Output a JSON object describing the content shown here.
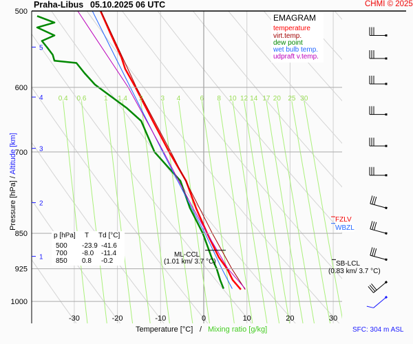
{
  "header": {
    "station": "Praha-Libus",
    "datetime": "05.10.2025 06 UTC",
    "copyright": "CHMI © 2025"
  },
  "legend": {
    "title": "EMAGRAM",
    "items": [
      {
        "label": "temperature",
        "color": "#ff0000"
      },
      {
        "label": "virt.temp.",
        "color": "#a00000"
      },
      {
        "label": "dew point",
        "color": "#008800"
      },
      {
        "label": "wet bulb temp.",
        "color": "#2266ff"
      },
      {
        "label": "udpraft v.temp.",
        "color": "#bb00bb"
      }
    ]
  },
  "table": {
    "headers": [
      "p [hPa]",
      "T",
      "Td [°C]"
    ],
    "rows": [
      [
        "500",
        "-23.9",
        "-41.6"
      ],
      [
        "700",
        "-8.0",
        "-11.4"
      ],
      [
        "850",
        "0.8",
        "-0.2"
      ]
    ]
  },
  "annotations": {
    "ml_ccl": "ML-CCL",
    "ml_ccl_val": "(1.01 km/ 3.7 °C)",
    "sb_lcl": "SB-LCL",
    "sb_lcl_val": "(0.83 km/ 3.7 °C)",
    "fzlv": "FZLV",
    "wbzl": "WBZL",
    "sfc": "SFC: 304 m ASL"
  },
  "chart_data": {
    "type": "line",
    "title": "EMAGRAM",
    "xlabel": "Temperature [°C]",
    "xlabel2": "Mixing ratio [g/kg]",
    "ylabel": "Pressure [hPa]",
    "ylabel2": "Altitude [km]",
    "xlim": [
      -30,
      30
    ],
    "ylim": [
      500,
      1050
    ],
    "y_scale": "log",
    "x_ticks": [
      "-30",
      "-20",
      "-10",
      "0",
      "10",
      "20",
      "30"
    ],
    "y_ticks": [
      "500",
      "600",
      "700",
      "850",
      "925",
      "1000"
    ],
    "altitude_ticks": [
      {
        "km": "5",
        "p": 545
      },
      {
        "km": "4",
        "p": 614
      },
      {
        "km": "3",
        "p": 694
      },
      {
        "km": "2",
        "p": 790
      },
      {
        "km": "1",
        "p": 898
      }
    ],
    "mixing_ratio_labels": [
      "0.4",
      "0.6",
      "1",
      "1.4",
      "2",
      "3",
      "4",
      "6",
      "8",
      "10",
      "12",
      "14",
      "17",
      "20",
      "25",
      "30"
    ],
    "series": [
      {
        "name": "temperature",
        "color": "#ff0000",
        "points": [
          [
            500,
            -23.9
          ],
          [
            529,
            -21.5
          ],
          [
            558,
            -19.1
          ],
          [
            574,
            -18.2
          ],
          [
            600,
            -15.8
          ],
          [
            650,
            -11.8
          ],
          [
            700,
            -8.0
          ],
          [
            750,
            -4.1
          ],
          [
            800,
            -1.8
          ],
          [
            850,
            0.8
          ],
          [
            900,
            3.5
          ],
          [
            925,
            5.4
          ],
          [
            950,
            6.7
          ],
          [
            972,
            8.6
          ]
        ]
      },
      {
        "name": "virt.temp.",
        "color": "#a00000",
        "points": [
          [
            500,
            -23.8
          ],
          [
            600,
            -15.6
          ],
          [
            700,
            -7.6
          ],
          [
            800,
            -1.0
          ],
          [
            850,
            2.0
          ],
          [
            925,
            6.5
          ],
          [
            972,
            9.6
          ]
        ]
      },
      {
        "name": "dew point",
        "color": "#008800",
        "points": [
          [
            506,
            -38.6
          ],
          [
            514,
            -34.6
          ],
          [
            520,
            -38.6
          ],
          [
            530,
            -34.6
          ],
          [
            537,
            -37.5
          ],
          [
            546,
            -36.2
          ],
          [
            555,
            -35
          ],
          [
            563,
            -34.6
          ],
          [
            566,
            -29.5
          ],
          [
            580,
            -27.6
          ],
          [
            596,
            -25.2
          ],
          [
            613,
            -21.5
          ],
          [
            630,
            -17.9
          ],
          [
            650,
            -14.5
          ],
          [
            700,
            -11.4
          ],
          [
            750,
            -5.4
          ],
          [
            800,
            -3.2
          ],
          [
            850,
            -0.2
          ],
          [
            900,
            1.8
          ],
          [
            925,
            3.0
          ],
          [
            950,
            3.8
          ],
          [
            970,
            4.6
          ]
        ]
      },
      {
        "name": "wet bulb temp.",
        "color": "#2266ff",
        "points": [
          [
            500,
            -25.8
          ],
          [
            600,
            -17.0
          ],
          [
            700,
            -9.5
          ],
          [
            800,
            -2.8
          ],
          [
            850,
            0.3
          ],
          [
            925,
            4.2
          ],
          [
            970,
            6.6
          ]
        ]
      },
      {
        "name": "udpraft v.temp.",
        "color": "#bb00bb",
        "points": [
          [
            500,
            -29.2
          ],
          [
            600,
            -17.5
          ],
          [
            700,
            -9.3
          ],
          [
            800,
            -2.5
          ],
          [
            850,
            0.8
          ],
          [
            925,
            5.6
          ],
          [
            970,
            9.6
          ]
        ]
      }
    ],
    "fzlv_p": 817,
    "wbzl_p": 830,
    "wind_barbs_p": [
      530,
      560,
      595,
      640,
      690,
      740,
      800,
      850,
      905,
      955,
      990
    ]
  }
}
